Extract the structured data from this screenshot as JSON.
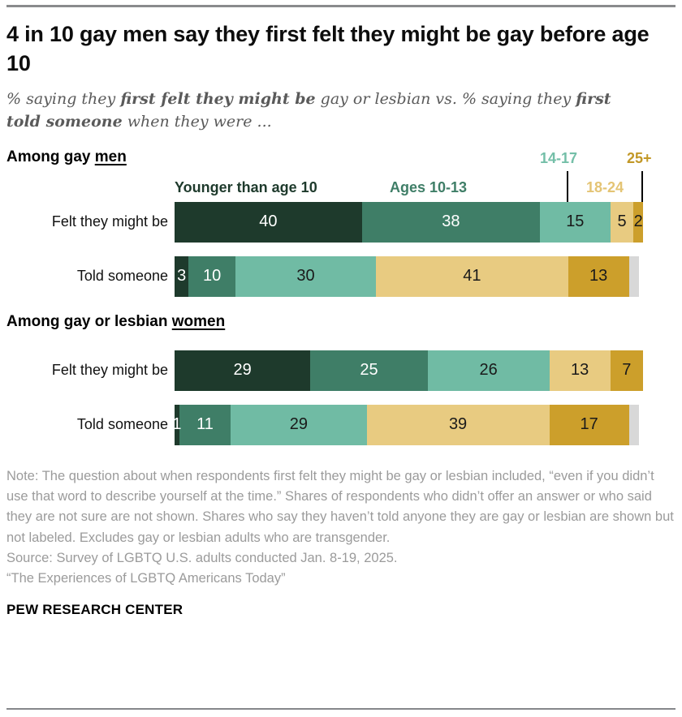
{
  "header": {
    "title": "4 in 10 gay men say they first felt they might be gay before age 10",
    "subtitle": {
      "part1": "% saying they ",
      "bold1": "first felt they might be",
      "part2": " gay or lesbian vs. % saying they ",
      "bold2": "first told someone",
      "part3": " when they were ..."
    }
  },
  "chart_data": {
    "type": "bar",
    "variant": "stacked-horizontal-100",
    "unit": "%",
    "xlim": [
      0,
      100
    ],
    "grid": false,
    "legend_position": "above-first-bar",
    "categories": [
      "Younger than age 10",
      "Ages 10-13",
      "14-17",
      "18-24",
      "25+"
    ],
    "colors": [
      "#1e3a2c",
      "#3f7e67",
      "#70bba4",
      "#e8cb81",
      "#cc9f2b"
    ],
    "value_text_colors": [
      "#ffffff",
      "#ffffff",
      "#1a1a1a",
      "#1a1a1a",
      "#1a1a1a"
    ],
    "unlabeled_color": "#d8d8d8",
    "unlabeled_meaning": "Haven't told anyone (shown but not labeled)",
    "legend": [
      {
        "label": "Younger than age 10",
        "color": "#1e3a2c"
      },
      {
        "label": "Ages 10-13",
        "color": "#3f7e67"
      },
      {
        "label": "14-17",
        "color": "#74bfa8"
      },
      {
        "label": "18-24",
        "color": "#e4c474"
      },
      {
        "label": "25+",
        "color": "#c29827"
      }
    ],
    "groups": [
      {
        "heading_prefix": "Among gay ",
        "heading_underlined": "men",
        "rows": [
          {
            "label": "Felt they might be",
            "values": [
              40,
              38,
              15,
              5,
              2
            ],
            "unlabeled": 0
          },
          {
            "label": "Told someone",
            "values": [
              3,
              10,
              30,
              41,
              13
            ],
            "unlabeled": 2.2
          }
        ]
      },
      {
        "heading_prefix": "Among gay or lesbian ",
        "heading_underlined": "women",
        "rows": [
          {
            "label": "Felt they might be",
            "values": [
              29,
              25,
              26,
              13,
              7
            ],
            "unlabeled": 0
          },
          {
            "label": "Told someone",
            "values": [
              1,
              11,
              29,
              39,
              17
            ],
            "unlabeled": 2.2
          }
        ]
      }
    ]
  },
  "footer": {
    "note": "Note: The question about when respondents first felt they might be gay or lesbian included, “even if you didn’t use that word to describe yourself at the time.” Shares of respondents who didn’t offer an answer or who said they are not sure are not shown. Shares who say they haven’t told anyone they are gay or lesbian are shown but not labeled. Excludes gay or lesbian adults who are transgender.",
    "source": "Source: Survey of LGBTQ U.S. adults conducted Jan. 8-19, 2025.",
    "report": "“The Experiences of LGBTQ Americans Today”",
    "brand": "PEW RESEARCH CENTER"
  }
}
